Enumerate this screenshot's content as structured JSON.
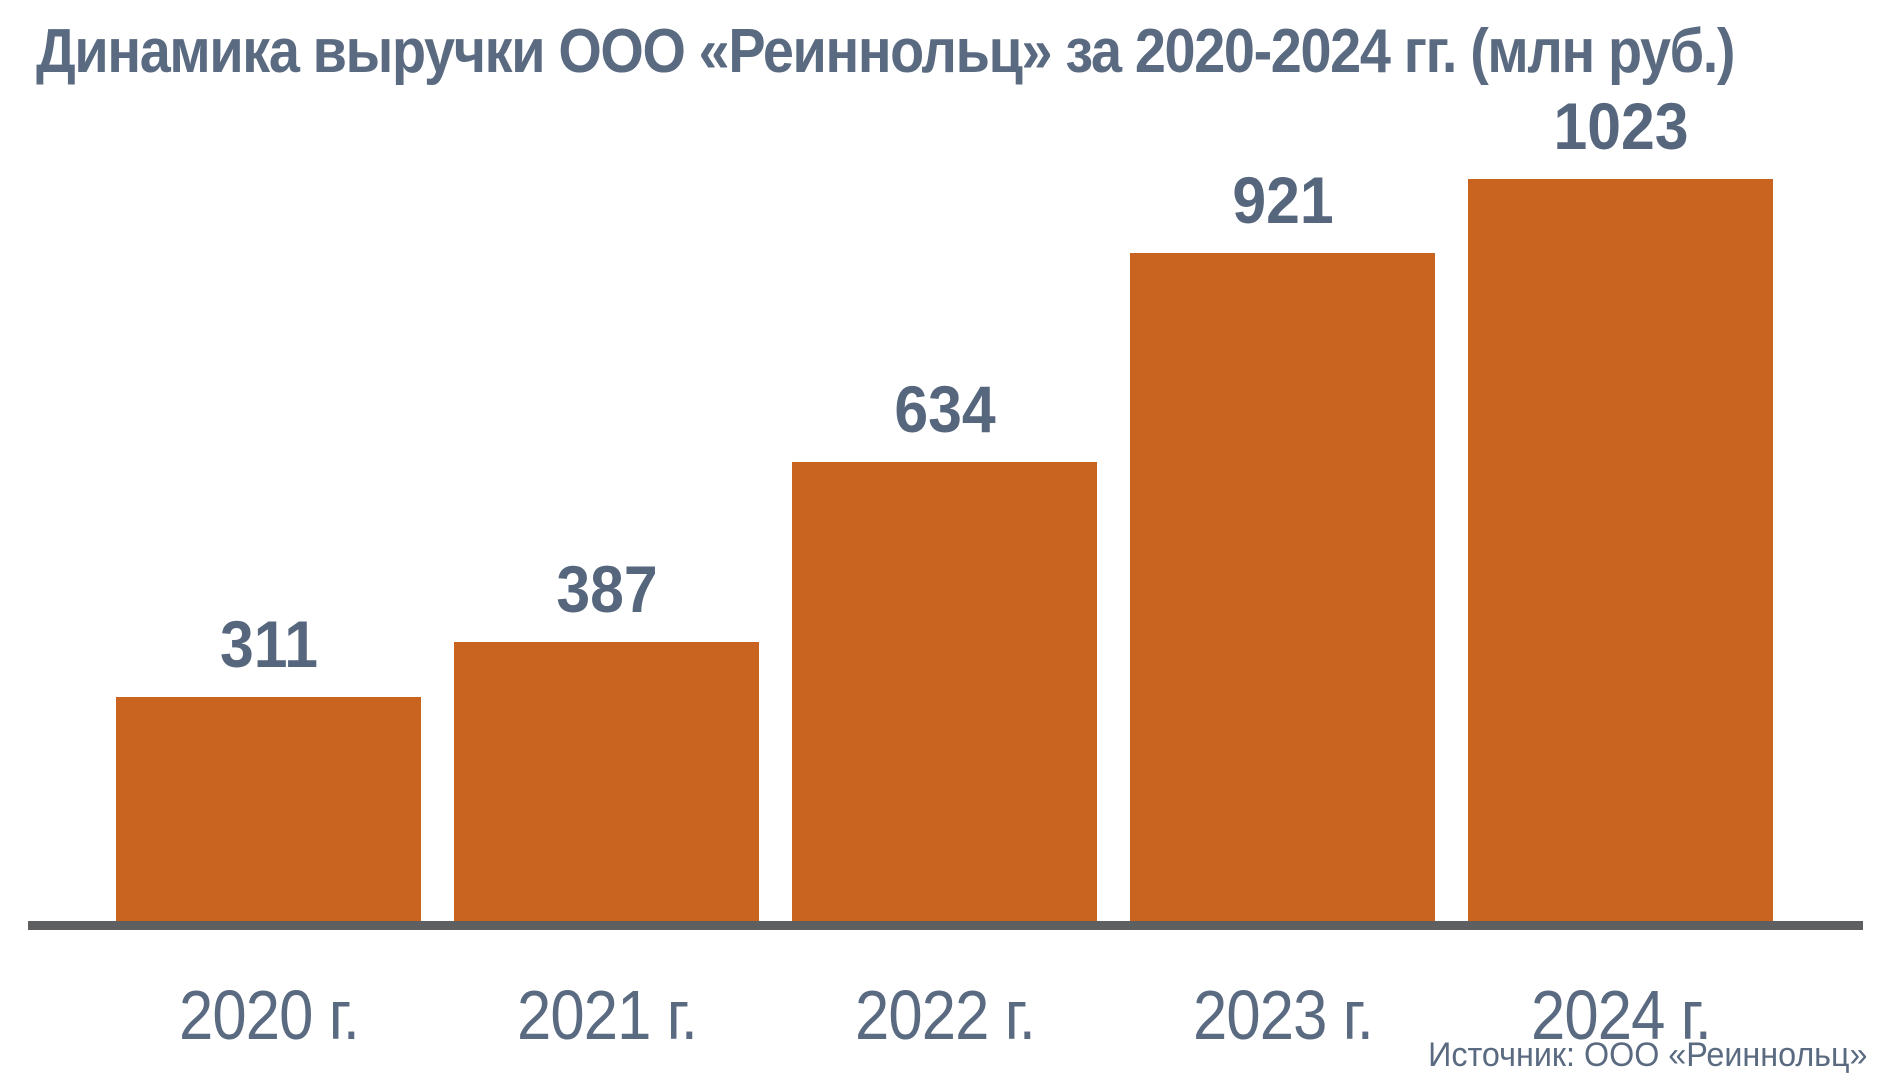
{
  "chart_data": {
    "type": "bar",
    "title": "Динамика выручки ООО «Реиннольц» за 2020-2024 гг. (млн руб.)",
    "categories": [
      "2020 г.",
      "2021 г.",
      "2022 г.",
      "2023 г.",
      "2024 г."
    ],
    "values": [
      311,
      387,
      634,
      921,
      1023
    ],
    "value_labels": [
      "311",
      "387",
      "634",
      "921",
      "1023"
    ],
    "xlabel": "",
    "ylabel": "",
    "ylim": [
      0,
      1100
    ],
    "grid": false,
    "legend": false,
    "legend_position": "none",
    "source": "Источник: ООО «Реиннольц»",
    "bar_color": "#c96320",
    "label_color": "#56667d",
    "axis_label_color": "#5a6a80",
    "title_color": "#5a6a80",
    "axis_line_color": "#5e5f61",
    "background_color": "#ffffff"
  }
}
